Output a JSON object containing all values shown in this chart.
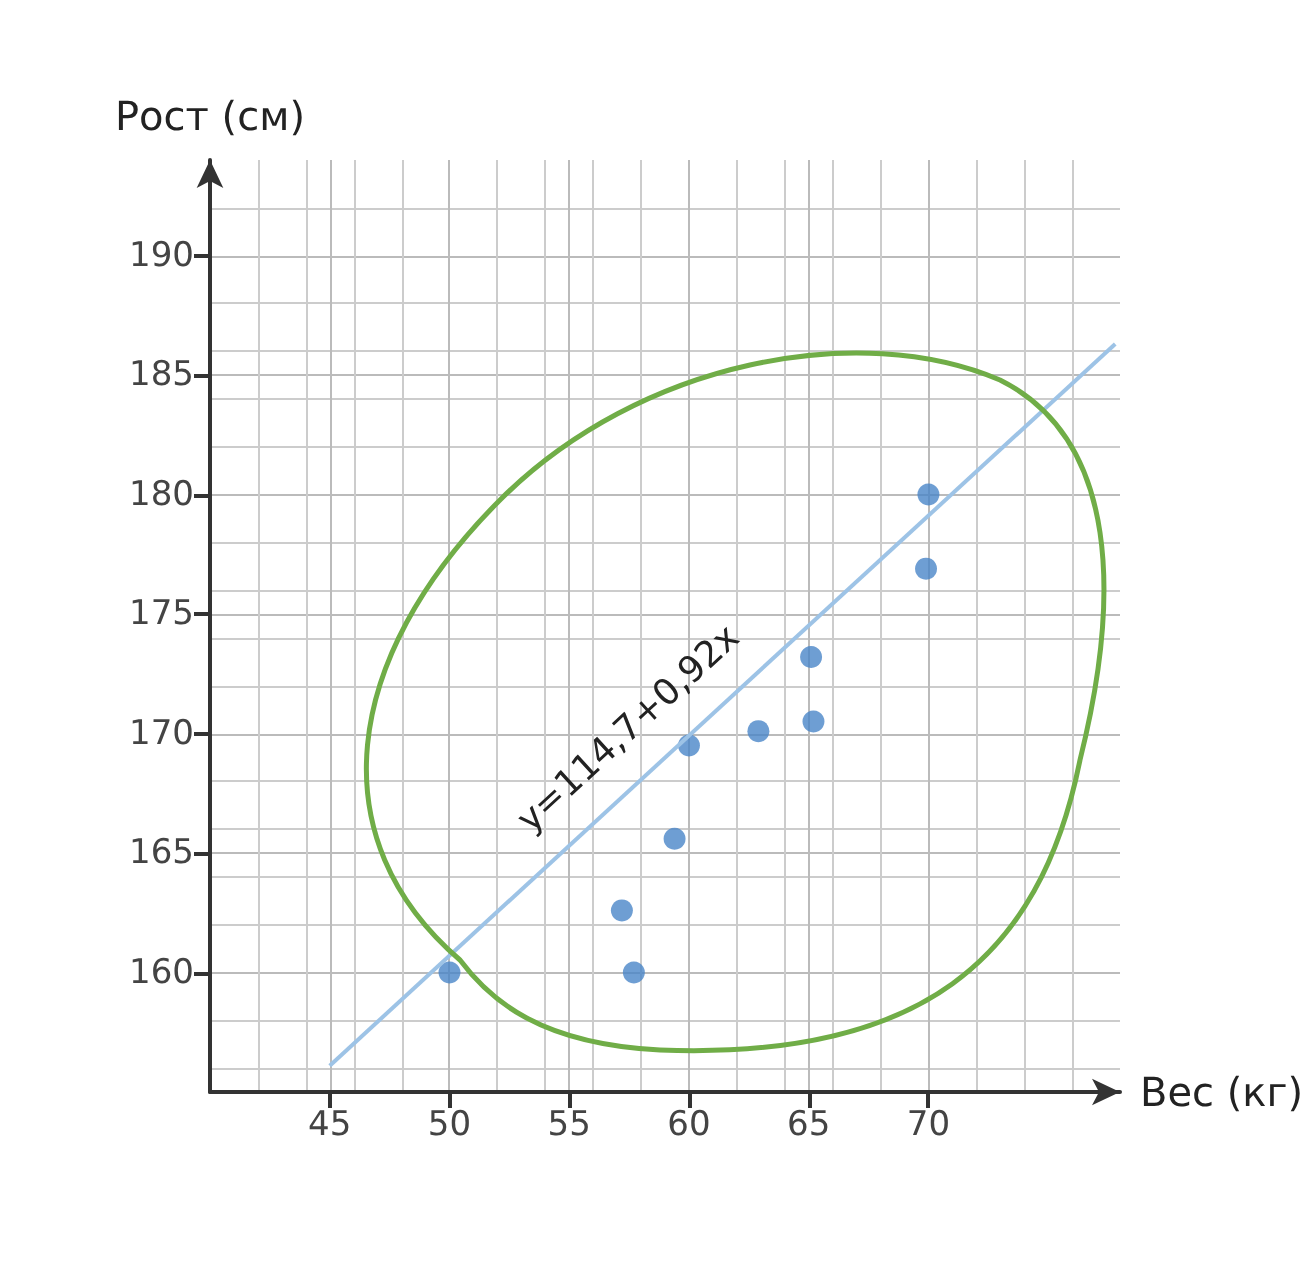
{
  "chart_data": {
    "type": "scatter",
    "xlabel": "Вес (кг)",
    "ylabel": "Рост (см)",
    "xlim": [
      40,
      78
    ],
    "ylim": [
      155,
      194
    ],
    "xticks": [
      45,
      50,
      55,
      60,
      65,
      70
    ],
    "yticks": [
      160,
      165,
      170,
      175,
      180,
      185,
      190
    ],
    "grid": true,
    "marker": "circle",
    "series": [
      {
        "color": "#4a86c8",
        "x": [
          50,
          57.7,
          57.2,
          59.4,
          60,
          62.9,
          65.2,
          65.1,
          70,
          69.9
        ],
        "values": [
          160,
          160,
          162.6,
          165.6,
          169.5,
          170.1,
          170.5,
          173.2,
          180,
          176.9
        ]
      },
      {
        "type": "line",
        "marker": "none",
        "color": "#9dc3e6",
        "x": [
          45,
          77.8
        ],
        "values": [
          156.1,
          186.3
        ]
      }
    ],
    "annotations": [
      "y=114,7+0,92x"
    ]
  }
}
